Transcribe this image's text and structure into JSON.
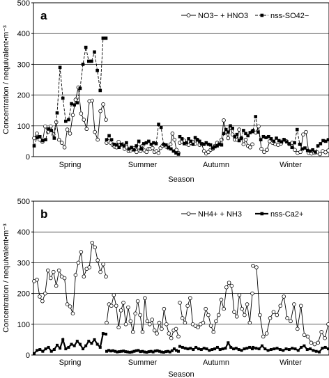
{
  "chart_data": [
    {
      "type": "line",
      "panel_label": "a",
      "ylabel": "Concentration / nequivalent•m⁻³",
      "xlabel": "Season",
      "ylim": [
        0,
        500
      ],
      "yticks": [
        0,
        100,
        200,
        300,
        400,
        500
      ],
      "grid": "horizontal",
      "legend_position": "top-right",
      "seasons": [
        "Spring",
        "Summer",
        "Autumn",
        "Winter"
      ],
      "series": [
        {
          "name": "NO3− + HNO3",
          "style": "solid-open-circle",
          "segments": [
            [
              60,
              75,
              55,
              48,
              98,
              80,
              98,
              72,
              112,
              55,
              45,
              30,
              88,
              75,
              135,
              185,
              225,
              140,
              120,
              90,
              180,
              182,
              80,
              55,
              148,
              170,
              120
            ],
            [
              45,
              50,
              45,
              38,
              32,
              30,
              48,
              38,
              40,
              25,
              30,
              18,
              20,
              25,
              28,
              15,
              30,
              18,
              35,
              20,
              15,
              25,
              25,
              28,
              15,
              18,
              12,
              28,
              35,
              38,
              32,
              28,
              40,
              75,
              55,
              22,
              12
            ],
            [
              45,
              48,
              52,
              42,
              38,
              45,
              48,
              42,
              55,
              38,
              40,
              18,
              10,
              15,
              22,
              25,
              35,
              45,
              42,
              55,
              118,
              80,
              60,
              95,
              72,
              55,
              55,
              88,
              60,
              40,
              55,
              35,
              30,
              40
            ],
            [
              82,
              78,
              98,
              25,
              15,
              22,
              50,
              45,
              40,
              38,
              42,
              55,
              50,
              40,
              45,
              22,
              12,
              15,
              72,
              80,
              12,
              10,
              12,
              14,
              8,
              18,
              14,
              20
            ]
          ]
        },
        {
          "name": "nss-SO42−",
          "style": "dashed-filled-square",
          "segments": [
            [
              35,
              62,
              65,
              52,
              55,
              90,
              85,
              60,
              142,
              290,
              190,
              115,
              120,
              172,
              168,
              175,
              222,
              300,
              355,
              310,
              310,
              340,
              280,
              215,
              385,
              385
            ],
            [
              55,
              68,
              55,
              40,
              38,
              30,
              40,
              35,
              45,
              25,
              30,
              22,
              35,
              50,
              25,
              42,
              45,
              50,
              40,
              45,
              42,
              105,
              95,
              40,
              38,
              30,
              25,
              18,
              12,
              8
            ],
            [
              65,
              58,
              42,
              45,
              58,
              50,
              40,
              62,
              55,
              50,
              42,
              40,
              45,
              40,
              38,
              28,
              32,
              35,
              40,
              38,
              75,
              88,
              80,
              100,
              92,
              65,
              72,
              52,
              60,
              85,
              75,
              68,
              78,
              82
            ],
            [
              85,
              130,
              80,
              55,
              65,
              62,
              65,
              58,
              50,
              60,
              52,
              48,
              55,
              48,
              42,
              30,
              45,
              88,
              40,
              25,
              28,
              20,
              18,
              22,
              15,
              35,
              42,
              52,
              50,
              55
            ]
          ]
        }
      ]
    },
    {
      "type": "line",
      "panel_label": "b",
      "ylabel": "Concentration / nequivalent•m⁻³",
      "xlabel": "Season",
      "ylim": [
        0,
        500
      ],
      "yticks": [
        0,
        100,
        200,
        300,
        400,
        500
      ],
      "grid": "horizontal",
      "legend_position": "top-right",
      "seasons": [
        "Spring",
        "Summer",
        "Autumn",
        "Winter"
      ],
      "series": [
        {
          "name": "NH4+ + NH3",
          "style": "solid-open-circle",
          "segments": [
            [
              240,
              245,
              190,
              175,
              200,
              275,
              250,
              270,
              225,
              275,
              255,
              250,
              165,
              158,
              135,
              260,
              300,
              335,
              255,
              280,
              285,
              365,
              350,
              308,
              270,
              295,
              255
            ],
            [
              105,
              165,
              160,
              195,
              160,
              90,
              145,
              170,
              100,
              155,
              110,
              75,
              135,
              175,
              130,
              75,
              185,
              110,
              100,
              115,
              80,
              70,
              105,
              85,
              150,
              100,
              70,
              55,
              80,
              85,
              60
            ],
            [
              170,
              120,
              105,
              160,
              185,
              100,
              95,
              90,
              100,
              105,
              150,
              130,
              95,
              75,
              110,
              130,
              180,
              150,
              220,
              235,
              225,
              140,
              125,
              195,
              150,
              130,
              165,
              105,
              200
            ],
            [
              290,
              285,
              130,
              60,
              70,
              120,
              140,
              130,
              160,
              190,
              120,
              110,
              165,
              85,
              160,
              65,
              60,
              40,
              35,
              40,
              75,
              55,
              100
            ]
          ]
        },
        {
          "name": "nss-Ca2+",
          "style": "solid-filled-square-thick",
          "segments": [
            [
              5,
              15,
              18,
              12,
              20,
              25,
              12,
              18,
              32,
              22,
              50,
              20,
              25,
              35,
              30,
              45,
              35,
              20,
              30,
              45,
              38,
              50,
              35,
              25,
              70,
              68
            ],
            [
              12,
              15,
              13,
              14,
              12,
              10,
              11,
              12,
              13,
              11,
              10,
              9,
              10,
              12,
              14,
              15,
              11,
              12,
              10,
              9,
              11,
              12,
              10,
              13,
              14,
              12,
              10,
              9,
              11,
              12,
              10,
              14,
              20,
              15,
              12
            ],
            [
              28,
              25,
              22,
              20,
              22,
              18,
              25,
              20,
              18,
              22,
              20,
              15,
              18,
              20,
              25,
              18,
              20,
              22,
              40,
              25,
              20,
              22,
              18,
              15,
              20,
              22,
              25,
              20
            ],
            [
              25,
              22,
              20,
              30,
              20,
              15,
              18,
              20,
              22,
              18,
              15,
              20,
              18,
              22,
              20,
              15,
              25,
              30,
              18,
              20,
              15,
              12,
              10,
              22,
              25,
              20
            ]
          ]
        }
      ]
    }
  ]
}
